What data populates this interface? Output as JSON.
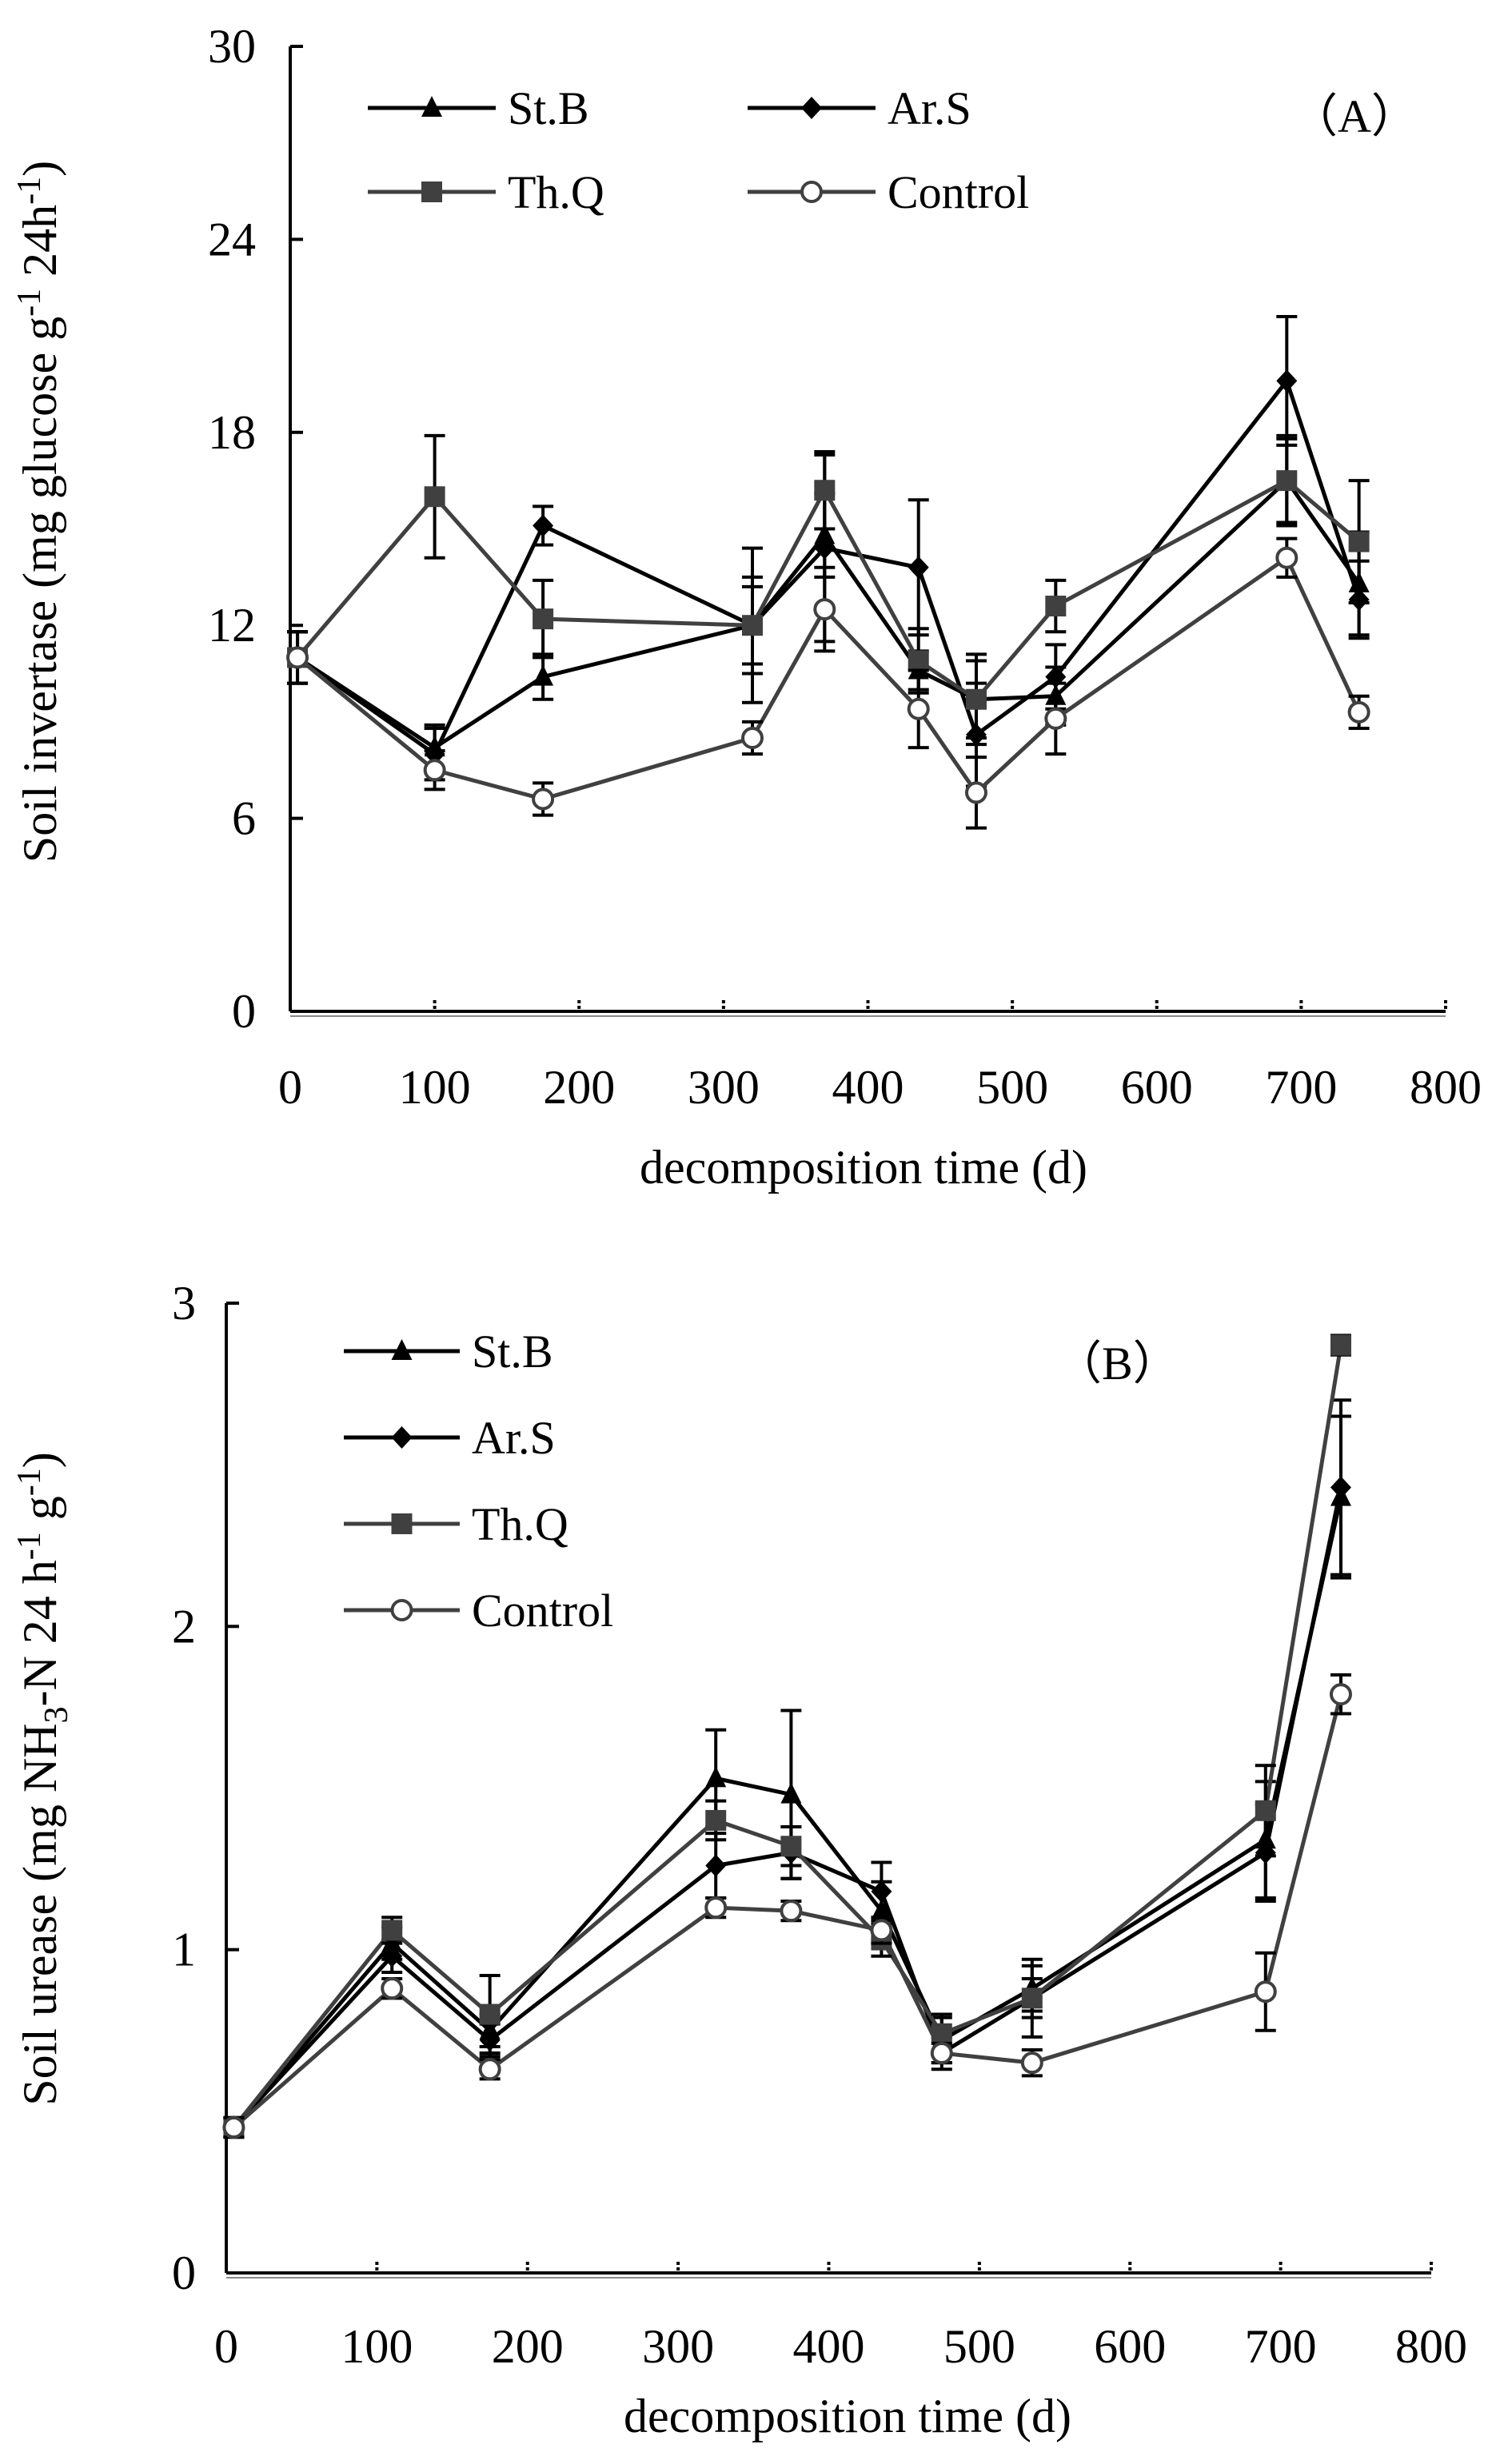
{
  "chart_data": [
    {
      "type": "line",
      "panel_label": "（A）",
      "title": "",
      "xlabel": "decomposition time  (d)",
      "ylabel": "Soil invertase (mg  glucose g",
      "ylabel_sup1": "-1",
      "ylabel_mid": " 24h",
      "ylabel_sup2": "-1",
      "ylabel_end": ")",
      "xlim": [
        0,
        800
      ],
      "ylim": [
        0,
        30
      ],
      "xticks": [
        0,
        100,
        200,
        300,
        400,
        500,
        600,
        700,
        800
      ],
      "yticks": [
        0,
        6,
        12,
        18,
        24,
        30
      ],
      "grid": false,
      "legend_position": "top",
      "series": [
        {
          "name": "St.B",
          "marker": "triangle",
          "color": "#000000",
          "x": [
            5,
            100,
            175,
            320,
            370,
            435,
            475,
            530,
            690,
            740
          ],
          "y": [
            11.0,
            8.2,
            10.4,
            12.0,
            14.8,
            10.6,
            9.7,
            9.8,
            16.5,
            13.3
          ],
          "err": [
            0.8,
            0.7,
            0.7,
            1.2,
            1.3,
            0.6,
            1.2,
            0.9,
            1.3,
            1.6
          ]
        },
        {
          "name": "Ar.S",
          "marker": "diamond",
          "color": "#000000",
          "x": [
            5,
            100,
            175,
            320,
            370,
            435,
            475,
            530,
            690,
            740
          ],
          "y": [
            11.0,
            8.0,
            15.1,
            12.0,
            14.4,
            13.8,
            8.6,
            10.4,
            19.6,
            12.8
          ],
          "err": [
            0.8,
            0.8,
            0.6,
            2.4,
            2.9,
            2.1,
            1.6,
            1.0,
            2.0,
            1.2
          ]
        },
        {
          "name": "Th.Q",
          "marker": "square",
          "color": "#404040",
          "x": [
            5,
            100,
            175,
            320,
            370,
            435,
            475,
            530,
            690,
            740
          ],
          "y": [
            11.0,
            16.0,
            12.2,
            12.0,
            16.2,
            10.9,
            9.7,
            12.6,
            16.5,
            14.6
          ],
          "err": [
            0.8,
            1.9,
            1.2,
            1.5,
            1.2,
            1.0,
            1.4,
            0.8,
            1.4,
            1.9
          ]
        },
        {
          "name": "Control",
          "marker": "circle-open",
          "color": "#404040",
          "x": [
            5,
            100,
            175,
            320,
            370,
            435,
            475,
            530,
            690,
            740
          ],
          "y": [
            11.0,
            7.5,
            6.6,
            8.5,
            12.5,
            9.4,
            6.8,
            9.1,
            14.1,
            9.3
          ],
          "err": [
            0.8,
            0.6,
            0.5,
            0.5,
            1.3,
            1.2,
            1.1,
            1.1,
            0.6,
            0.5
          ]
        }
      ]
    },
    {
      "type": "line",
      "panel_label": "（B）",
      "title": "",
      "xlabel": "decomposition time  (d)",
      "ylabel": "Soil urease (mg  NH",
      "ylabel_sub": "3",
      "ylabel_mid": "-N 24  h",
      "ylabel_sup1": "-1",
      "ylabel_mid2": " g",
      "ylabel_sup2": "-1",
      "ylabel_end": ")",
      "xlim": [
        0,
        800
      ],
      "ylim": [
        0,
        3
      ],
      "xticks": [
        0,
        100,
        200,
        300,
        400,
        500,
        600,
        700,
        800
      ],
      "yticks": [
        0,
        1,
        2,
        3
      ],
      "grid": false,
      "legend_position": "top-left",
      "series": [
        {
          "name": "St.B",
          "marker": "triangle",
          "color": "#000000",
          "x": [
            5,
            110,
            175,
            325,
            375,
            435,
            475,
            535,
            690,
            740
          ],
          "y": [
            0.45,
            1.02,
            0.75,
            1.53,
            1.48,
            1.12,
            0.72,
            0.88,
            1.34,
            2.4
          ],
          "err": [
            0.03,
            0.05,
            0.05,
            0.15,
            0.26,
            0.09,
            0.07,
            0.07,
            0.18,
            0.25
          ]
        },
        {
          "name": "Ar.S",
          "marker": "diamond",
          "color": "#000000",
          "x": [
            5,
            110,
            175,
            325,
            375,
            435,
            475,
            535,
            690,
            740
          ],
          "y": [
            0.45,
            0.98,
            0.72,
            1.26,
            1.3,
            1.18,
            0.68,
            0.85,
            1.3,
            2.43
          ],
          "err": [
            0.03,
            0.05,
            0.05,
            0.1,
            0.08,
            0.09,
            0.05,
            0.06,
            0.15,
            0.27
          ]
        },
        {
          "name": "Th.Q",
          "marker": "square",
          "color": "#404040",
          "x": [
            5,
            110,
            175,
            325,
            375,
            435,
            475,
            535,
            690,
            740
          ],
          "y": [
            0.45,
            1.06,
            0.8,
            1.4,
            1.32,
            1.03,
            0.74,
            0.85,
            1.43,
            2.87
          ],
          "err": [
            0.03,
            0.04,
            0.12,
            0.06,
            0.06,
            0.05,
            0.06,
            0.12,
            0.14,
            0.03
          ]
        },
        {
          "name": "Control",
          "marker": "circle-open",
          "color": "#404040",
          "x": [
            5,
            110,
            175,
            325,
            375,
            435,
            475,
            535,
            690,
            740
          ],
          "y": [
            0.45,
            0.88,
            0.63,
            1.13,
            1.12,
            1.06,
            0.68,
            0.65,
            0.87,
            1.79
          ],
          "err": [
            0.03,
            0.03,
            0.03,
            0.03,
            0.03,
            0.04,
            0.03,
            0.04,
            0.12,
            0.06
          ]
        }
      ]
    }
  ]
}
